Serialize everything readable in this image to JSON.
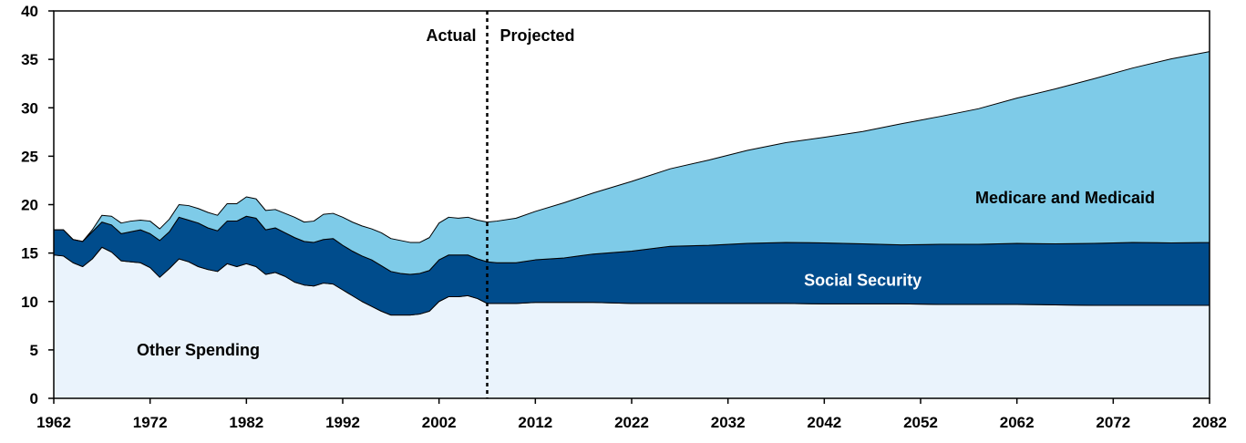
{
  "chart_data": {
    "type": "area",
    "stacked": true,
    "title": "",
    "xlabel": "",
    "ylabel": "",
    "xlim": [
      1962,
      2082
    ],
    "ylim": [
      0,
      40
    ],
    "x_ticks": [
      "1962",
      "1972",
      "1982",
      "1992",
      "2002",
      "2012",
      "2022",
      "2032",
      "2042",
      "2052",
      "2062",
      "2072",
      "2082"
    ],
    "y_ticks": [
      "0",
      "5",
      "10",
      "15",
      "20",
      "25",
      "30",
      "35",
      "40"
    ],
    "grid": false,
    "divider": {
      "x": 2007,
      "left_label": "Actual",
      "right_label": "Projected"
    },
    "colors": {
      "Other Spending": "#eaf3fc",
      "Social Security": "#004c8c",
      "Medicare and Medicaid": "#7ecbe8"
    },
    "x": [
      1962,
      1963,
      1964,
      1965,
      1966,
      1967,
      1968,
      1969,
      1970,
      1971,
      1972,
      1973,
      1974,
      1975,
      1976,
      1977,
      1978,
      1979,
      1980,
      1981,
      1982,
      1983,
      1984,
      1985,
      1986,
      1987,
      1988,
      1989,
      1990,
      1991,
      1992,
      1993,
      1994,
      1995,
      1996,
      1997,
      1998,
      1999,
      2000,
      2001,
      2002,
      2003,
      2004,
      2005,
      2006,
      2007,
      2008,
      2010,
      2012,
      2015,
      2018,
      2022,
      2026,
      2030,
      2034,
      2038,
      2042,
      2046,
      2050,
      2054,
      2058,
      2062,
      2066,
      2070,
      2074,
      2078,
      2082
    ],
    "series": [
      {
        "name": "Other Spending",
        "values": [
          14.8,
          14.7,
          14.0,
          13.6,
          14.4,
          15.6,
          15.1,
          14.2,
          14.1,
          14.0,
          13.5,
          12.5,
          13.4,
          14.4,
          14.1,
          13.6,
          13.3,
          13.1,
          13.9,
          13.6,
          13.9,
          13.6,
          12.8,
          13.0,
          12.6,
          12.0,
          11.7,
          11.6,
          11.9,
          11.8,
          11.2,
          10.6,
          10.0,
          9.5,
          9.0,
          8.6,
          8.6,
          8.6,
          8.7,
          9.0,
          10.0,
          10.5,
          10.5,
          10.6,
          10.3,
          9.8,
          9.8,
          9.8,
          9.9,
          9.9,
          9.9,
          9.8,
          9.8,
          9.8,
          9.8,
          9.8,
          9.75,
          9.75,
          9.75,
          9.7,
          9.7,
          9.7,
          9.65,
          9.6,
          9.6,
          9.6,
          9.6
        ]
      },
      {
        "name": "Social Security",
        "values": [
          2.6,
          2.7,
          2.4,
          2.6,
          2.8,
          2.6,
          2.8,
          2.8,
          3.1,
          3.4,
          3.5,
          3.8,
          3.8,
          4.3,
          4.3,
          4.5,
          4.3,
          4.2,
          4.4,
          4.7,
          4.9,
          5.0,
          4.6,
          4.6,
          4.5,
          4.6,
          4.5,
          4.5,
          4.5,
          4.7,
          4.6,
          4.6,
          4.7,
          4.8,
          4.7,
          4.5,
          4.3,
          4.2,
          4.2,
          4.2,
          4.3,
          4.3,
          4.3,
          4.2,
          4.1,
          4.3,
          4.2,
          4.2,
          4.4,
          4.6,
          5.0,
          5.4,
          5.9,
          6.0,
          6.2,
          6.3,
          6.3,
          6.2,
          6.1,
          6.2,
          6.2,
          6.3,
          6.3,
          6.4,
          6.5,
          6.45,
          6.5
        ]
      },
      {
        "name": "Medicare and Medicaid",
        "values": [
          0.0,
          0.0,
          0.0,
          0.0,
          0.2,
          0.7,
          0.9,
          1.1,
          1.1,
          1.0,
          1.3,
          1.2,
          1.3,
          1.3,
          1.5,
          1.5,
          1.6,
          1.6,
          1.8,
          1.8,
          2.0,
          2.0,
          2.0,
          1.9,
          2.0,
          2.1,
          2.0,
          2.2,
          2.6,
          2.6,
          2.9,
          3.0,
          3.1,
          3.2,
          3.4,
          3.4,
          3.4,
          3.3,
          3.2,
          3.4,
          3.8,
          3.9,
          3.8,
          3.9,
          4.0,
          4.1,
          4.3,
          4.6,
          5.0,
          5.7,
          6.3,
          7.2,
          8.0,
          8.8,
          9.6,
          10.3,
          10.9,
          11.6,
          12.5,
          13.2,
          14.0,
          15.0,
          16.0,
          17.0,
          18.0,
          19.0,
          19.7
        ]
      }
    ],
    "annotations": [
      {
        "text": "Other Spending",
        "x": 1977,
        "y": 5,
        "color": "#000000"
      },
      {
        "text": "Social Security",
        "x": 2046,
        "y": 12.2,
        "color": "#ffffff"
      },
      {
        "text": "Medicare and Medicaid",
        "x": 2067,
        "y": 20.7,
        "color": "#000000"
      }
    ]
  }
}
